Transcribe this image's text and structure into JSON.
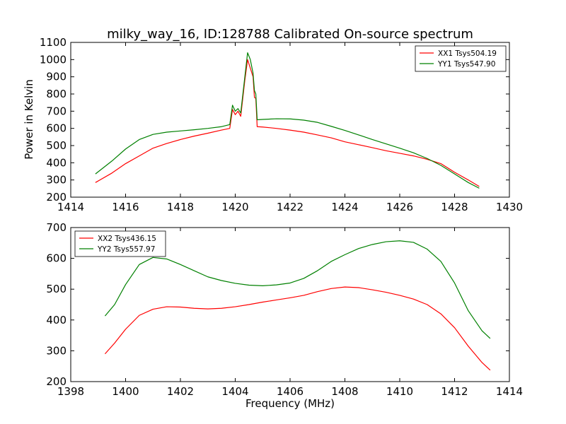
{
  "chart_data": [
    {
      "type": "line",
      "title": "milky_way_16, ID:128788 Calibrated On-source spectrum",
      "xlabel": "",
      "ylabel": "Power in Kelvin",
      "xlim": [
        1414,
        1430
      ],
      "ylim": [
        200,
        1100
      ],
      "xticks": [
        1414,
        1416,
        1418,
        1420,
        1422,
        1424,
        1426,
        1428,
        1430
      ],
      "yticks": [
        200,
        300,
        400,
        500,
        600,
        700,
        800,
        900,
        1000,
        1100
      ],
      "legend_position": "top-right",
      "series": [
        {
          "name": "XX1 Tsys504.19",
          "color": "#ff0000",
          "points": [
            [
              1414.9,
              285
            ],
            [
              1415.5,
              340
            ],
            [
              1416.0,
              395
            ],
            [
              1416.5,
              440
            ],
            [
              1417.0,
              485
            ],
            [
              1417.5,
              512
            ],
            [
              1418.0,
              535
            ],
            [
              1418.5,
              555
            ],
            [
              1419.0,
              572
            ],
            [
              1419.5,
              590
            ],
            [
              1419.8,
              600
            ],
            [
              1419.9,
              710
            ],
            [
              1420.0,
              680
            ],
            [
              1420.1,
              700
            ],
            [
              1420.2,
              670
            ],
            [
              1420.35,
              880
            ],
            [
              1420.45,
              1000
            ],
            [
              1420.55,
              950
            ],
            [
              1420.65,
              900
            ],
            [
              1420.7,
              780
            ],
            [
              1420.75,
              775
            ],
            [
              1420.8,
              610
            ],
            [
              1421.0,
              608
            ],
            [
              1421.5,
              600
            ],
            [
              1422.0,
              590
            ],
            [
              1422.5,
              578
            ],
            [
              1423.0,
              562
            ],
            [
              1423.5,
              545
            ],
            [
              1424.0,
              522
            ],
            [
              1424.5,
              505
            ],
            [
              1425.0,
              488
            ],
            [
              1425.5,
              470
            ],
            [
              1426.0,
              455
            ],
            [
              1426.5,
              440
            ],
            [
              1427.0,
              420
            ],
            [
              1427.5,
              395
            ],
            [
              1428.0,
              345
            ],
            [
              1428.5,
              300
            ],
            [
              1428.9,
              262
            ]
          ]
        },
        {
          "name": "YY1 Tsys547.90",
          "color": "#008000",
          "points": [
            [
              1414.9,
              335
            ],
            [
              1415.5,
              410
            ],
            [
              1416.0,
              480
            ],
            [
              1416.5,
              535
            ],
            [
              1417.0,
              565
            ],
            [
              1417.5,
              578
            ],
            [
              1418.0,
              585
            ],
            [
              1418.5,
              592
            ],
            [
              1419.0,
              600
            ],
            [
              1419.5,
              610
            ],
            [
              1419.8,
              622
            ],
            [
              1419.9,
              735
            ],
            [
              1420.0,
              700
            ],
            [
              1420.1,
              715
            ],
            [
              1420.2,
              690
            ],
            [
              1420.35,
              900
            ],
            [
              1420.45,
              1040
            ],
            [
              1420.55,
              1000
            ],
            [
              1420.65,
              920
            ],
            [
              1420.7,
              820
            ],
            [
              1420.75,
              800
            ],
            [
              1420.8,
              650
            ],
            [
              1421.0,
              652
            ],
            [
              1421.5,
              656
            ],
            [
              1422.0,
              655
            ],
            [
              1422.5,
              648
            ],
            [
              1423.0,
              635
            ],
            [
              1423.5,
              612
            ],
            [
              1424.0,
              588
            ],
            [
              1424.5,
              562
            ],
            [
              1425.0,
              535
            ],
            [
              1425.5,
              510
            ],
            [
              1426.0,
              485
            ],
            [
              1426.5,
              458
            ],
            [
              1427.0,
              425
            ],
            [
              1427.5,
              385
            ],
            [
              1428.0,
              335
            ],
            [
              1428.5,
              285
            ],
            [
              1428.9,
              252
            ]
          ]
        }
      ]
    },
    {
      "type": "line",
      "title": "",
      "xlabel": "Frequency (MHz)",
      "ylabel": "",
      "xlim": [
        1398,
        1414
      ],
      "ylim": [
        200,
        700
      ],
      "xticks": [
        1398,
        1400,
        1402,
        1404,
        1406,
        1408,
        1410,
        1412,
        1414
      ],
      "yticks": [
        200,
        300,
        400,
        500,
        600,
        700
      ],
      "legend_position": "top-left",
      "series": [
        {
          "name": "XX2 Tsys436.15",
          "color": "#ff0000",
          "points": [
            [
              1399.25,
              290
            ],
            [
              1399.6,
              325
            ],
            [
              1400.0,
              370
            ],
            [
              1400.5,
              415
            ],
            [
              1401.0,
              435
            ],
            [
              1401.5,
              443
            ],
            [
              1402.0,
              442
            ],
            [
              1402.5,
              438
            ],
            [
              1403.0,
              436
            ],
            [
              1403.5,
              438
            ],
            [
              1404.0,
              443
            ],
            [
              1404.5,
              450
            ],
            [
              1405.0,
              458
            ],
            [
              1405.5,
              465
            ],
            [
              1406.0,
              472
            ],
            [
              1406.5,
              480
            ],
            [
              1407.0,
              492
            ],
            [
              1407.5,
              502
            ],
            [
              1408.0,
              507
            ],
            [
              1408.5,
              505
            ],
            [
              1409.0,
              498
            ],
            [
              1409.5,
              490
            ],
            [
              1410.0,
              480
            ],
            [
              1410.5,
              468
            ],
            [
              1411.0,
              450
            ],
            [
              1411.5,
              420
            ],
            [
              1412.0,
              375
            ],
            [
              1412.5,
              315
            ],
            [
              1413.0,
              262
            ],
            [
              1413.3,
              237
            ]
          ]
        },
        {
          "name": "YY2 Tsys557.97",
          "color": "#008000",
          "points": [
            [
              1399.25,
              413
            ],
            [
              1399.6,
              450
            ],
            [
              1400.0,
              515
            ],
            [
              1400.5,
              580
            ],
            [
              1401.0,
              603
            ],
            [
              1401.5,
              598
            ],
            [
              1402.0,
              580
            ],
            [
              1402.5,
              560
            ],
            [
              1403.0,
              540
            ],
            [
              1403.5,
              528
            ],
            [
              1404.0,
              519
            ],
            [
              1404.5,
              513
            ],
            [
              1405.0,
              511
            ],
            [
              1405.5,
              514
            ],
            [
              1406.0,
              520
            ],
            [
              1406.5,
              535
            ],
            [
              1407.0,
              560
            ],
            [
              1407.5,
              590
            ],
            [
              1408.0,
              612
            ],
            [
              1408.5,
              632
            ],
            [
              1409.0,
              645
            ],
            [
              1409.5,
              654
            ],
            [
              1410.0,
              657
            ],
            [
              1410.5,
              652
            ],
            [
              1411.0,
              630
            ],
            [
              1411.5,
              590
            ],
            [
              1412.0,
              520
            ],
            [
              1412.5,
              430
            ],
            [
              1413.0,
              365
            ],
            [
              1413.3,
              340
            ]
          ]
        }
      ]
    }
  ]
}
